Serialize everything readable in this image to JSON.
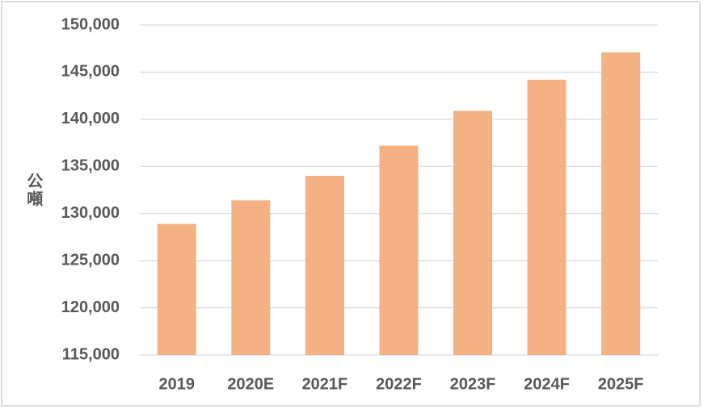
{
  "chart_data": {
    "type": "bar",
    "y_label": "公噸",
    "categories": [
      "2019",
      "2020E",
      "2021F",
      "2022F",
      "2023F",
      "2024F",
      "2025F"
    ],
    "values": [
      128900,
      131400,
      134000,
      137200,
      140900,
      144200,
      147100
    ],
    "color": "#f4b183",
    "ylim": [
      115000,
      150000
    ],
    "yticks": [
      {
        "value": 115000,
        "label": "115,000"
      },
      {
        "value": 120000,
        "label": "120,000"
      },
      {
        "value": 125000,
        "label": "125,000"
      },
      {
        "value": 130000,
        "label": "130,000"
      },
      {
        "value": 135000,
        "label": "135,000"
      },
      {
        "value": 140000,
        "label": "140,000"
      },
      {
        "value": 145000,
        "label": "145,000"
      },
      {
        "value": 150000,
        "label": "150,000"
      }
    ],
    "grid": true
  }
}
